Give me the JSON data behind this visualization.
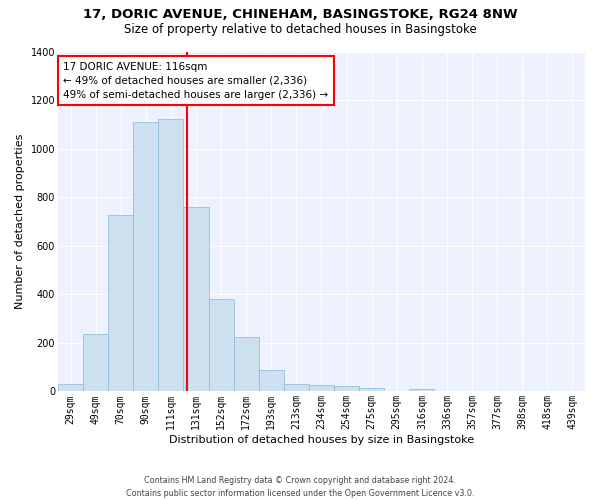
{
  "title_line1": "17, DORIC AVENUE, CHINEHAM, BASINGSTOKE, RG24 8NW",
  "title_line2": "Size of property relative to detached houses in Basingstoke",
  "xlabel": "Distribution of detached houses by size in Basingstoke",
  "ylabel": "Number of detached properties",
  "footnote": "Contains HM Land Registry data © Crown copyright and database right 2024.\nContains public sector information licensed under the Open Government Licence v3.0.",
  "categories": [
    "29sqm",
    "49sqm",
    "70sqm",
    "90sqm",
    "111sqm",
    "131sqm",
    "152sqm",
    "172sqm",
    "193sqm",
    "213sqm",
    "234sqm",
    "254sqm",
    "275sqm",
    "295sqm",
    "316sqm",
    "336sqm",
    "357sqm",
    "377sqm",
    "398sqm",
    "418sqm",
    "439sqm"
  ],
  "values": [
    30,
    235,
    725,
    1110,
    1120,
    760,
    380,
    225,
    90,
    32,
    27,
    22,
    15,
    0,
    12,
    0,
    0,
    0,
    0,
    0,
    0
  ],
  "bar_color": "#cce0f0",
  "bar_edge_color": "#8ab8d8",
  "vline_x": 4.65,
  "vline_color": "red",
  "annotation_text": "17 DORIC AVENUE: 116sqm\n← 49% of detached houses are smaller (2,336)\n49% of semi-detached houses are larger (2,336) →",
  "annotation_box_color": "red",
  "annotation_text_color": "black",
  "ylim": [
    0,
    1400
  ],
  "yticks": [
    0,
    200,
    400,
    600,
    800,
    1000,
    1200,
    1400
  ],
  "bg_color": "#eef2ff",
  "grid_color": "white",
  "title_fontsize": 9.5,
  "subtitle_fontsize": 8.5,
  "axis_label_fontsize": 8,
  "tick_fontsize": 7,
  "annotation_fontsize": 7.5
}
